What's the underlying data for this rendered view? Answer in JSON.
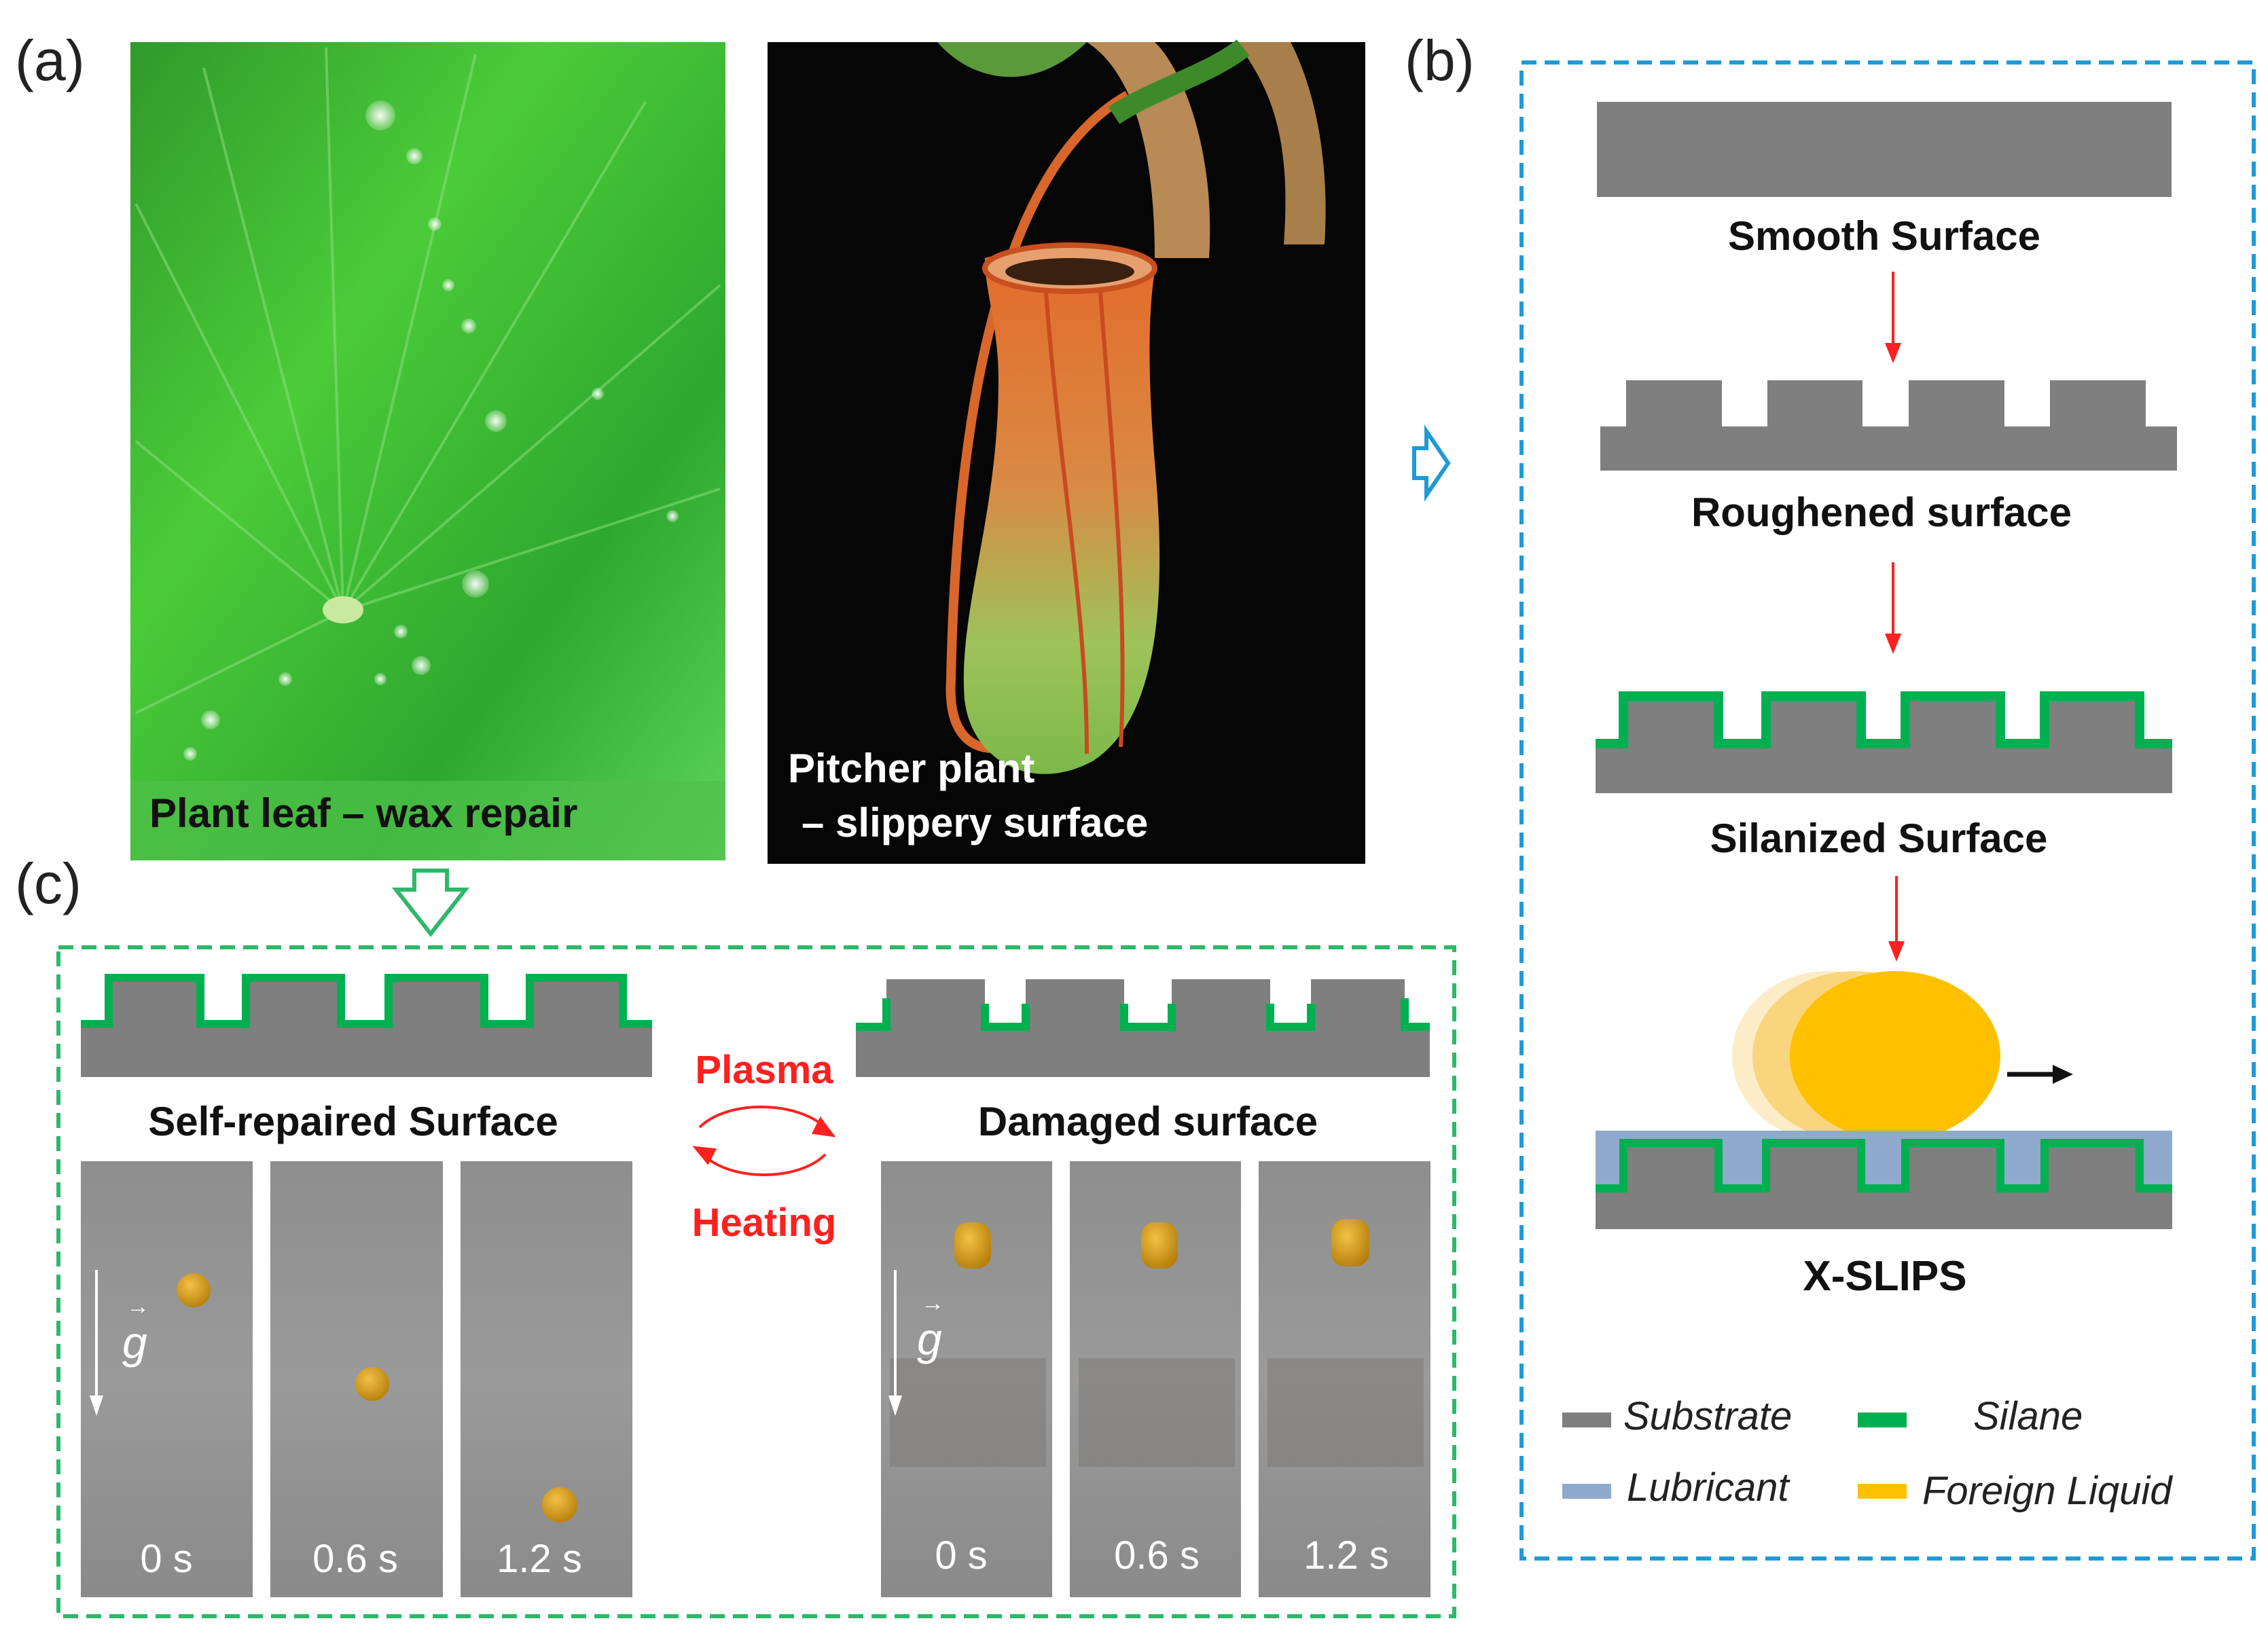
{
  "panel_labels": {
    "a": "(a)",
    "b": "(b)",
    "c": "(c)"
  },
  "panel_a": {
    "leaf_caption": "Plant leaf – wax repair",
    "pitcher_caption_line1": "Pitcher plant",
    "pitcher_caption_line2": "– slippery surface"
  },
  "panel_b": {
    "steps": [
      "Smooth Surface",
      "Roughened surface",
      "Silanized Surface",
      "X-SLIPS"
    ]
  },
  "panel_c": {
    "self_repaired_label": "Self-repaired Surface",
    "damaged_label": "Damaged surface",
    "plasma_label": "Plasma",
    "heating_label": "Heating",
    "gravity_symbol": "g",
    "left_times": [
      "0 s",
      "0.6 s",
      "1.2 s"
    ],
    "right_times": [
      "0 s",
      "0.6 s",
      "1.2 s"
    ]
  },
  "legend": [
    {
      "label": "Substrate",
      "color": "#7f7f7f"
    },
    {
      "label": "Silane",
      "color": "#00b050"
    },
    {
      "label": "Lubricant",
      "color": "#8faacc"
    },
    {
      "label": "Foreign Liquid",
      "color": "#ffc000"
    }
  ],
  "colors": {
    "substrate": "#7f7f7f",
    "silane": "#00b050",
    "lubricant": "#8faacc",
    "foreign_liquid": "#ffc000",
    "panel_b_border": "#1f9ad6",
    "panel_c_border": "#2db86a",
    "process_arrow": "#ff2020"
  }
}
